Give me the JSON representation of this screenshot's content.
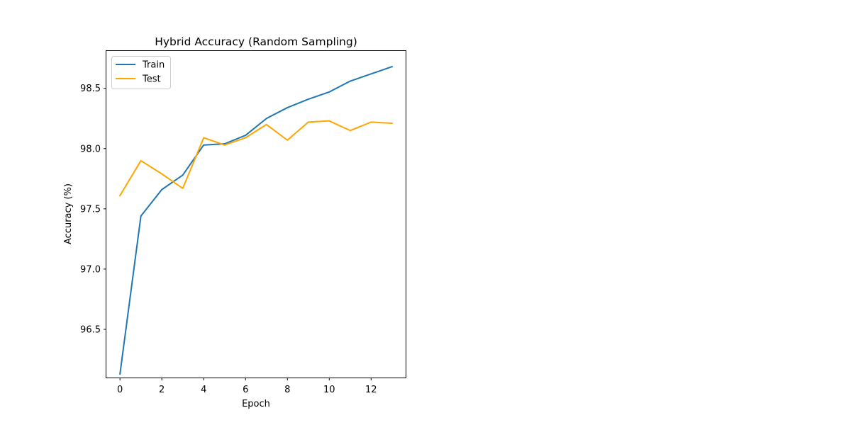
{
  "chart_data": {
    "type": "line",
    "title": "Hybrid Accuracy (Random Sampling)",
    "xlabel": "Epoch",
    "ylabel": "Accuracy (%)",
    "x": [
      0,
      1,
      2,
      3,
      4,
      5,
      6,
      7,
      8,
      9,
      10,
      11,
      12,
      13
    ],
    "xlim": [
      -0.65,
      13.65
    ],
    "ylim": [
      96.1,
      98.81
    ],
    "xticks": [
      "0",
      "2",
      "4",
      "6",
      "8",
      "10",
      "12"
    ],
    "yticks": [
      "96.5",
      "97.0",
      "97.5",
      "98.0",
      "98.5"
    ],
    "grid": false,
    "legend_position": "upper-left",
    "series": [
      {
        "name": "Train",
        "color": "#1f77b4",
        "values": [
          96.13,
          97.44,
          97.66,
          97.78,
          98.03,
          98.04,
          98.11,
          98.25,
          98.34,
          98.41,
          98.47,
          98.56,
          98.62,
          98.68
        ]
      },
      {
        "name": "Test",
        "color": "#ffa500",
        "values": [
          97.61,
          97.9,
          97.79,
          97.67,
          98.09,
          98.03,
          98.09,
          98.2,
          98.07,
          98.22,
          98.23,
          98.15,
          98.22,
          98.21
        ]
      }
    ]
  }
}
